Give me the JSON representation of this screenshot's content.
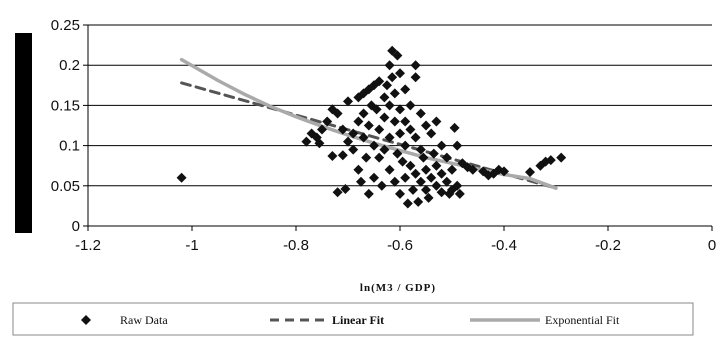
{
  "chart_data": {
    "type": "scatter",
    "xlabel": "ln(M3 / GDP)",
    "ylabel": "",
    "xlim": [
      -1.2,
      0
    ],
    "ylim": [
      0,
      0.25
    ],
    "xticks": [
      "-1.2",
      "-1",
      "-0.8",
      "-0.6",
      "-0.4",
      "-0.2",
      "0"
    ],
    "yticks": [
      "0",
      "0.05",
      "0.1",
      "0.15",
      "0.2",
      "0.25"
    ],
    "grid": "horizontal",
    "legend_position": "bottom",
    "colors": {
      "raw": "#111111",
      "linear": "#555555",
      "exponential": "#aaaaaa",
      "grid": "#000000"
    },
    "series": [
      {
        "name": "Raw Data",
        "kind": "scatter",
        "points": [
          [
            -1.02,
            0.06
          ],
          [
            -0.78,
            0.105
          ],
          [
            -0.77,
            0.115
          ],
          [
            -0.76,
            0.11
          ],
          [
            -0.75,
            0.12
          ],
          [
            -0.755,
            0.103
          ],
          [
            -0.74,
            0.13
          ],
          [
            -0.73,
            0.145
          ],
          [
            -0.73,
            0.087
          ],
          [
            -0.72,
            0.14
          ],
          [
            -0.72,
            0.042
          ],
          [
            -0.71,
            0.12
          ],
          [
            -0.71,
            0.088
          ],
          [
            -0.705,
            0.046
          ],
          [
            -0.7,
            0.155
          ],
          [
            -0.7,
            0.105
          ],
          [
            -0.69,
            0.115
          ],
          [
            -0.69,
            0.095
          ],
          [
            -0.68,
            0.16
          ],
          [
            -0.68,
            0.13
          ],
          [
            -0.68,
            0.07
          ],
          [
            -0.675,
            0.055
          ],
          [
            -0.67,
            0.165
          ],
          [
            -0.67,
            0.14
          ],
          [
            -0.67,
            0.11
          ],
          [
            -0.665,
            0.085
          ],
          [
            -0.66,
            0.17
          ],
          [
            -0.66,
            0.125
          ],
          [
            -0.66,
            0.04
          ],
          [
            -0.655,
            0.15
          ],
          [
            -0.65,
            0.175
          ],
          [
            -0.65,
            0.1
          ],
          [
            -0.65,
            0.06
          ],
          [
            -0.645,
            0.145
          ],
          [
            -0.64,
            0.18
          ],
          [
            -0.64,
            0.12
          ],
          [
            -0.64,
            0.085
          ],
          [
            -0.635,
            0.05
          ],
          [
            -0.63,
            0.16
          ],
          [
            -0.63,
            0.135
          ],
          [
            -0.63,
            0.095
          ],
          [
            -0.625,
            0.175
          ],
          [
            -0.62,
            0.2
          ],
          [
            -0.62,
            0.15
          ],
          [
            -0.62,
            0.11
          ],
          [
            -0.62,
            0.07
          ],
          [
            -0.615,
            0.218
          ],
          [
            -0.615,
            0.185
          ],
          [
            -0.61,
            0.165
          ],
          [
            -0.61,
            0.13
          ],
          [
            -0.61,
            0.055
          ],
          [
            -0.605,
            0.212
          ],
          [
            -0.605,
            0.09
          ],
          [
            -0.6,
            0.19
          ],
          [
            -0.6,
            0.145
          ],
          [
            -0.6,
            0.115
          ],
          [
            -0.6,
            0.04
          ],
          [
            -0.595,
            0.08
          ],
          [
            -0.59,
            0.17
          ],
          [
            -0.59,
            0.13
          ],
          [
            -0.59,
            0.1
          ],
          [
            -0.59,
            0.06
          ],
          [
            -0.585,
            0.028
          ],
          [
            -0.58,
            0.15
          ],
          [
            -0.58,
            0.12
          ],
          [
            -0.58,
            0.075
          ],
          [
            -0.575,
            0.045
          ],
          [
            -0.57,
            0.2
          ],
          [
            -0.57,
            0.185
          ],
          [
            -0.57,
            0.11
          ],
          [
            -0.57,
            0.065
          ],
          [
            -0.565,
            0.03
          ],
          [
            -0.56,
            0.14
          ],
          [
            -0.56,
            0.095
          ],
          [
            -0.56,
            0.055
          ],
          [
            -0.555,
            0.085
          ],
          [
            -0.55,
            0.125
          ],
          [
            -0.55,
            0.07
          ],
          [
            -0.55,
            0.045
          ],
          [
            -0.545,
            0.035
          ],
          [
            -0.54,
            0.115
          ],
          [
            -0.54,
            0.06
          ],
          [
            -0.535,
            0.09
          ],
          [
            -0.53,
            0.13
          ],
          [
            -0.53,
            0.075
          ],
          [
            -0.53,
            0.05
          ],
          [
            -0.52,
            0.1
          ],
          [
            -0.52,
            0.065
          ],
          [
            -0.52,
            0.042
          ],
          [
            -0.51,
            0.085
          ],
          [
            -0.51,
            0.055
          ],
          [
            -0.505,
            0.04
          ],
          [
            -0.5,
            0.07
          ],
          [
            -0.5,
            0.045
          ],
          [
            -0.495,
            0.122
          ],
          [
            -0.49,
            0.1
          ],
          [
            -0.49,
            0.05
          ],
          [
            -0.485,
            0.04
          ],
          [
            -0.48,
            0.078
          ],
          [
            -0.47,
            0.073
          ],
          [
            -0.46,
            0.07
          ],
          [
            -0.44,
            0.068
          ],
          [
            -0.43,
            0.063
          ],
          [
            -0.42,
            0.065
          ],
          [
            -0.41,
            0.07
          ],
          [
            -0.4,
            0.068
          ],
          [
            -0.35,
            0.067
          ],
          [
            -0.33,
            0.075
          ],
          [
            -0.32,
            0.08
          ],
          [
            -0.31,
            0.082
          ],
          [
            -0.29,
            0.085
          ]
        ]
      },
      {
        "name": "Linear Fit",
        "kind": "line",
        "style": "dashed",
        "x": [
          -1.02,
          -0.3
        ],
        "y": [
          0.178,
          0.047
        ]
      },
      {
        "name": "Exponential Fit",
        "kind": "line",
        "style": "solid",
        "x": [
          -1.02,
          -0.95,
          -0.9,
          -0.85,
          -0.8,
          -0.75,
          -0.7,
          -0.65,
          -0.6,
          -0.55,
          -0.5,
          -0.45,
          -0.4,
          -0.35,
          -0.3
        ],
        "y": [
          0.207,
          0.181,
          0.164,
          0.149,
          0.136,
          0.124,
          0.113,
          0.103,
          0.094,
          0.085,
          0.078,
          0.071,
          0.064,
          0.059,
          0.047
        ]
      }
    ]
  }
}
